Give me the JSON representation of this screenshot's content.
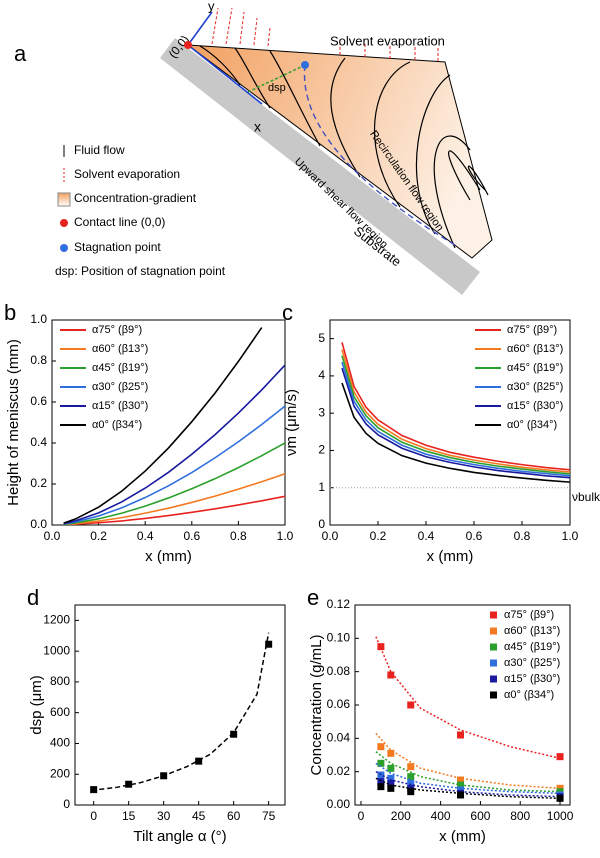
{
  "diagram": {
    "panel": "a",
    "axis_y": "y",
    "axis_x": "x",
    "origin": "(0,0)",
    "top_label": "Solvent evaporation",
    "dsp": "dsp",
    "upward": "Upward shear flow region",
    "recirc": "Recirculation flow region",
    "substrate": "Substrate",
    "legend": [
      "Fluid flow",
      "Solvent evaporation",
      "Concentration-gradient",
      "Contact line (0,0)",
      "Stagnation point",
      "dsp: Position of stagnation point"
    ]
  },
  "chart_data": [
    {
      "type": "line",
      "panel": "b",
      "xlabel": "x (mm)",
      "ylabel": "Height of meniscus (mm)",
      "legend": "upper left",
      "x": [
        0.05,
        0.1,
        0.2,
        0.3,
        0.4,
        0.5,
        0.6,
        0.7,
        0.8,
        0.9,
        1.0
      ],
      "xlim": [
        0,
        1
      ],
      "ylim": [
        0,
        1
      ],
      "xticks": [
        {
          "value": 0,
          "label": "0.0"
        },
        {
          "value": 0.2,
          "label": "0.2"
        },
        {
          "value": 0.4,
          "label": "0.4"
        },
        {
          "value": 0.6,
          "label": "0.6"
        },
        {
          "value": 0.8,
          "label": "0.8"
        },
        {
          "value": 1,
          "label": "1.0"
        }
      ],
      "yticks": [
        {
          "value": 0,
          "label": "0.0"
        },
        {
          "value": 0.2,
          "label": "0.2"
        },
        {
          "value": 0.4,
          "label": "0.4"
        },
        {
          "value": 0.6,
          "label": "0.6"
        },
        {
          "value": 0.8,
          "label": "0.8"
        },
        {
          "value": 1,
          "label": "1.0"
        }
      ],
      "series": [
        {
          "name": "α75° (β9°)",
          "color": "#e8231f",
          "values": [
            0.001,
            0.004,
            0.011,
            0.02,
            0.032,
            0.046,
            0.062,
            0.079,
            0.098,
            0.118,
            0.14
          ]
        },
        {
          "name": "α60° (β13°)",
          "color": "#f47a20",
          "values": [
            0.002,
            0.006,
            0.019,
            0.036,
            0.058,
            0.082,
            0.11,
            0.141,
            0.175,
            0.211,
            0.25
          ]
        },
        {
          "name": "α45° (β19°)",
          "color": "#2ca02c",
          "values": [
            0.003,
            0.01,
            0.03,
            0.058,
            0.092,
            0.132,
            0.177,
            0.226,
            0.28,
            0.338,
            0.4
          ]
        },
        {
          "name": "α30° (β25°)",
          "color": "#2f6fdd",
          "values": [
            0.005,
            0.015,
            0.044,
            0.084,
            0.134,
            0.191,
            0.256,
            0.328,
            0.406,
            0.49,
            0.58
          ]
        },
        {
          "name": "α15° (β30°)",
          "color": "#1a1aa0",
          "values": [
            0.006,
            0.02,
            0.059,
            0.113,
            0.18,
            0.257,
            0.345,
            0.441,
            0.546,
            0.659,
            0.78
          ]
        },
        {
          "name": "α0° (β34°)",
          "color": "#000000",
          "values": [
            0.009,
            0.029,
            0.087,
            0.166,
            0.263,
            0.376,
            0.504,
            0.644,
            0.798,
            0.963,
            null
          ]
        }
      ]
    },
    {
      "type": "line",
      "panel": "c",
      "xlabel": "x (mm)",
      "ylabel": "νm (μm/s)",
      "legend": "upper right",
      "x": [
        0.05,
        0.1,
        0.15,
        0.2,
        0.3,
        0.4,
        0.5,
        0.6,
        0.7,
        0.8,
        0.9,
        1.0
      ],
      "xlim": [
        0,
        1
      ],
      "ylim": [
        0,
        5.5
      ],
      "xticks": [
        {
          "value": 0,
          "label": "0.0"
        },
        {
          "value": 0.2,
          "label": "0.2"
        },
        {
          "value": 0.4,
          "label": "0.4"
        },
        {
          "value": 0.6,
          "label": "0.6"
        },
        {
          "value": 0.8,
          "label": "0.8"
        },
        {
          "value": 1,
          "label": "1.0"
        }
      ],
      "yticks": [
        0,
        1,
        2,
        3,
        4,
        5
      ],
      "reference_line": {
        "value": 1,
        "label": "νbulk"
      },
      "series": [
        {
          "name": "α75° (β9°)",
          "color": "#e8231f",
          "values": [
            4.9,
            3.72,
            3.16,
            2.82,
            2.4,
            2.14,
            1.95,
            1.82,
            1.71,
            1.62,
            1.54,
            1.48
          ]
        },
        {
          "name": "α60° (β13°)",
          "color": "#f47a20",
          "values": [
            4.71,
            3.57,
            3.03,
            2.7,
            2.3,
            2.05,
            1.87,
            1.74,
            1.64,
            1.55,
            1.48,
            1.42
          ]
        },
        {
          "name": "α45° (β19°)",
          "color": "#2ca02c",
          "values": [
            4.54,
            3.44,
            2.93,
            2.61,
            2.22,
            1.98,
            1.81,
            1.68,
            1.58,
            1.5,
            1.43,
            1.37
          ]
        },
        {
          "name": "α30° (β25°)",
          "color": "#2f6fdd",
          "values": [
            4.37,
            3.32,
            2.82,
            2.51,
            2.14,
            1.9,
            1.74,
            1.62,
            1.52,
            1.44,
            1.38,
            1.32
          ]
        },
        {
          "name": "α15° (β30°)",
          "color": "#1a1aa0",
          "values": [
            4.21,
            3.19,
            2.71,
            2.42,
            2.06,
            1.83,
            1.68,
            1.56,
            1.46,
            1.39,
            1.32,
            1.27
          ]
        },
        {
          "name": "α0° (β34°)",
          "color": "#000000",
          "values": [
            3.81,
            2.89,
            2.46,
            2.19,
            1.86,
            1.66,
            1.52,
            1.41,
            1.33,
            1.26,
            1.2,
            1.15
          ]
        }
      ]
    },
    {
      "type": "scatter",
      "panel": "d",
      "xlabel": "Tilt angle α (°)",
      "ylabel": "dsp (μm)",
      "x": [
        0,
        15,
        30,
        45,
        60,
        75
      ],
      "fit_x": [
        -1,
        10,
        20,
        30,
        40,
        50,
        60,
        70,
        75
      ],
      "xlim": [
        -8,
        82
      ],
      "ylim": [
        0,
        1300
      ],
      "xticks": [
        0,
        15,
        30,
        45,
        60,
        75
      ],
      "yticks": [
        0,
        200,
        400,
        600,
        800,
        1000,
        1200
      ],
      "series": [
        {
          "color": "#000000",
          "values": [
            100,
            135,
            190,
            285,
            460,
            1045
          ],
          "fit_values": [
            95,
            115,
            145,
            190,
            250,
            330,
            470,
            720,
            1120
          ]
        }
      ]
    },
    {
      "type": "scatter",
      "panel": "e",
      "xlabel": "x (mm)",
      "ylabel": "Concentration (g/mL)",
      "legend": "upper right",
      "x": [
        100,
        150,
        250,
        500,
        1000
      ],
      "fit_x": [
        75,
        150,
        300,
        500,
        750,
        1000
      ],
      "xlim": [
        -30,
        1050
      ],
      "ylim": [
        0,
        0.12
      ],
      "xticks": [
        0,
        200,
        400,
        600,
        800,
        1000
      ],
      "yticks": [
        {
          "value": 0,
          "label": "0.00"
        },
        {
          "value": 0.02,
          "label": "0.02"
        },
        {
          "value": 0.04,
          "label": "0.04"
        },
        {
          "value": 0.06,
          "label": "0.06"
        },
        {
          "value": 0.08,
          "label": "0.08"
        },
        {
          "value": 0.1,
          "label": "0.10"
        },
        {
          "value": 0.12,
          "label": "0.12"
        }
      ],
      "series": [
        {
          "name": "α75° (β9°)",
          "color": "#e8231f",
          "values": [
            0.095,
            0.078,
            0.06,
            0.042,
            0.029
          ],
          "fit_values": [
            0.101,
            0.08,
            0.058,
            0.045,
            0.035,
            0.028
          ]
        },
        {
          "name": "α60° (β13°)",
          "color": "#f47a20",
          "values": [
            0.035,
            0.031,
            0.023,
            0.015,
            0.01
          ],
          "fit_values": [
            0.043,
            0.033,
            0.022,
            0.016,
            0.012,
            0.01
          ]
        },
        {
          "name": "α45° (β19°)",
          "color": "#2ca02c",
          "values": [
            0.025,
            0.022,
            0.017,
            0.012,
            0.008
          ],
          "fit_values": [
            0.032,
            0.025,
            0.017,
            0.012,
            0.009,
            0.008
          ]
        },
        {
          "name": "α30° (β25°)",
          "color": "#2f6fdd",
          "values": [
            0.018,
            0.016,
            0.013,
            0.009,
            0.006
          ],
          "fit_values": [
            0.025,
            0.019,
            0.013,
            0.01,
            0.008,
            0.007
          ]
        },
        {
          "name": "α15° (β30°)",
          "color": "#1a1aa0",
          "values": [
            0.014,
            0.013,
            0.01,
            0.007,
            0.005
          ],
          "fit_values": [
            0.02,
            0.015,
            0.011,
            0.008,
            0.006,
            0.005
          ]
        },
        {
          "name": "α0° (β34°)",
          "color": "#000000",
          "values": [
            0.011,
            0.01,
            0.008,
            0.006,
            0.004
          ],
          "fit_values": [
            0.016,
            0.012,
            0.009,
            0.007,
            0.005,
            0.004
          ]
        }
      ]
    }
  ]
}
